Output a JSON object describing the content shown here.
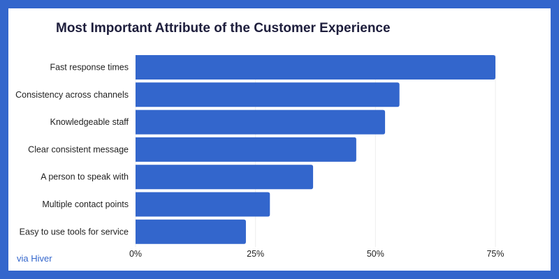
{
  "chart_data": {
    "type": "bar",
    "orientation": "horizontal",
    "title": "Most Important Attribute of the Customer Experience",
    "categories": [
      "Fast response times",
      "Consistency across channels",
      "Knowledgeable staff",
      "Clear consistent message",
      "A person to speak with",
      "Multiple contact points",
      "Easy to use tools for service"
    ],
    "values": [
      75,
      55,
      52,
      46,
      37,
      28,
      23
    ],
    "unit": "%",
    "xlim": [
      0,
      75
    ],
    "xticks": [
      "0%",
      "25%",
      "50%",
      "75%"
    ],
    "grid": true,
    "bar_color": "#3366cc"
  },
  "source": "via Hiver",
  "colors": {
    "frame": "#3366cc",
    "bar": "#3366cc"
  }
}
